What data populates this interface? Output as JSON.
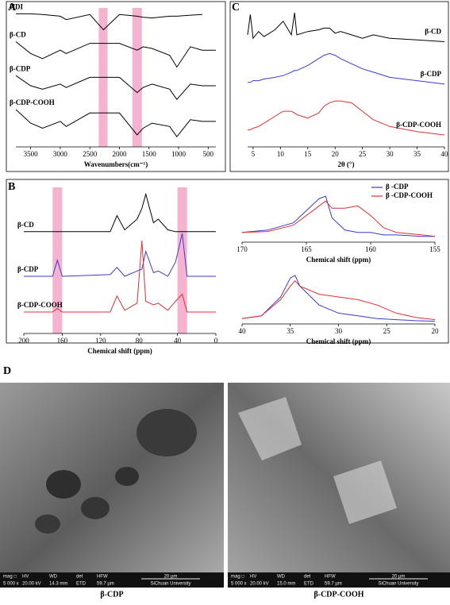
{
  "chart_data": [
    {
      "type": "line",
      "label": "A",
      "xlabel": "Wavenumbers(cm⁻¹)",
      "x": [
        3750,
        3500,
        3300,
        3000,
        2900,
        2500,
        2270,
        2000,
        1700,
        1600,
        1450,
        1150,
        1030,
        800,
        600,
        370
      ],
      "xlim": [
        3750,
        370
      ],
      "xticks": [
        3500,
        3000,
        2500,
        2000,
        1500,
        1000,
        500
      ],
      "ylim": [
        0,
        4
      ],
      "highlights": [
        [
          2350,
          2200
        ],
        [
          1780,
          1620
        ]
      ],
      "series": [
        {
          "name": "HDI",
          "color": "#000000",
          "values": [
            3.92,
            3.92,
            3.9,
            3.85,
            3.75,
            3.9,
            3.45,
            3.9,
            3.85,
            3.82,
            3.8,
            3.85,
            3.85,
            3.88,
            3.9,
            null
          ]
        },
        {
          "name": "β-CD",
          "color": "#000000",
          "values": [
            3.1,
            2.75,
            2.6,
            2.85,
            2.75,
            3.05,
            3.05,
            3.05,
            2.85,
            2.95,
            2.9,
            2.7,
            2.35,
            2.95,
            2.85,
            2.85
          ]
        },
        {
          "name": "β-CDP",
          "color": "#000000",
          "values": [
            2.1,
            1.8,
            1.7,
            1.85,
            1.75,
            2.05,
            2.05,
            2.05,
            1.6,
            1.75,
            1.85,
            1.7,
            1.4,
            1.85,
            1.8,
            1.8
          ]
        },
        {
          "name": "β-CDP-COOH",
          "color": "#000000",
          "values": [
            1.1,
            0.7,
            0.55,
            0.75,
            0.6,
            1.0,
            1.0,
            1.0,
            0.35,
            0.55,
            0.7,
            0.6,
            0.3,
            0.8,
            0.75,
            0.75
          ]
        }
      ]
    },
    {
      "type": "line",
      "label": "C",
      "xlabel": "2θ (°)",
      "x": [
        4,
        4.5,
        5,
        6,
        7,
        9,
        10.5,
        12,
        12.6,
        13,
        15,
        17,
        18,
        19,
        20,
        21,
        23,
        25,
        27,
        30,
        35,
        40
      ],
      "xlim": [
        4,
        40
      ],
      "xticks": [
        5,
        10,
        15,
        20,
        25,
        30,
        35,
        40
      ],
      "ylim": [
        0,
        4
      ],
      "series": [
        {
          "name": "β-CD",
          "color": "#000000",
          "values": [
            3.3,
            3.9,
            3.2,
            3.4,
            3.25,
            3.45,
            3.7,
            3.3,
            3.95,
            3.3,
            3.4,
            3.45,
            3.5,
            3.5,
            3.35,
            3.4,
            3.3,
            3.2,
            3.3,
            3.2,
            3.15,
            3.1
          ]
        },
        {
          "name": "β-CDP",
          "color": "#3a3ad0",
          "values": [
            1.9,
            1.9,
            1.95,
            1.95,
            2.0,
            2.05,
            2.1,
            2.2,
            2.25,
            2.25,
            2.4,
            2.6,
            2.7,
            2.75,
            2.7,
            2.6,
            2.45,
            2.3,
            2.2,
            2.05,
            1.95,
            1.85
          ]
        },
        {
          "name": "β-CDP-COOH",
          "color": "#e03030",
          "values": [
            0.5,
            0.5,
            0.55,
            0.6,
            0.7,
            0.9,
            1.05,
            1.05,
            1.0,
            0.95,
            0.85,
            1.0,
            1.2,
            1.3,
            1.35,
            1.35,
            1.3,
            1.05,
            0.8,
            0.6,
            0.45,
            0.35
          ]
        }
      ]
    },
    {
      "type": "line",
      "label": "B",
      "xlabel": "Chemical shift (ppm)",
      "x": [
        200,
        170,
        165,
        160,
        110,
        103,
        95,
        82,
        77,
        73,
        65,
        60,
        50,
        42,
        35,
        30,
        0
      ],
      "xlim": [
        200,
        0
      ],
      "xticks": [
        200,
        160,
        120,
        80,
        40,
        0
      ],
      "ylim": [
        0,
        4
      ],
      "highlights": [
        [
          170,
          160
        ],
        [
          40,
          30
        ]
      ],
      "series": [
        {
          "name": "β-CD",
          "color": "#000000",
          "values": [
            2.85,
            2.85,
            2.85,
            2.85,
            2.85,
            3.3,
            2.9,
            3.2,
            3.5,
            3.9,
            3.1,
            3.2,
            2.9,
            2.85,
            2.85,
            2.85,
            2.85
          ]
        },
        {
          "name": "β-CDP",
          "color": "#3a3ad0",
          "values": [
            1.6,
            1.6,
            2.05,
            1.6,
            1.65,
            1.85,
            1.6,
            1.75,
            1.8,
            2.3,
            1.7,
            1.75,
            1.6,
            2.0,
            2.8,
            1.6,
            1.6
          ]
        },
        {
          "name": "β-CDP-COOH",
          "color": "#e03030",
          "values": [
            0.6,
            0.6,
            0.7,
            0.6,
            0.6,
            1.05,
            0.65,
            0.85,
            2.6,
            0.9,
            0.8,
            0.85,
            0.65,
            0.9,
            1.1,
            0.6,
            0.6
          ]
        }
      ]
    },
    {
      "type": "line",
      "xlabel": "Chemical shift (ppm)",
      "x": [
        170,
        168,
        166,
        164,
        163.5,
        163,
        162,
        161,
        160,
        159,
        158,
        156,
        155
      ],
      "xlim": [
        170,
        155
      ],
      "xticks": [
        170,
        165,
        160,
        155
      ],
      "ylim": [
        0,
        1
      ],
      "series": [
        {
          "name": "β -CDP",
          "color": "#3a3ad0",
          "values": [
            0.2,
            0.25,
            0.4,
            0.9,
            0.95,
            0.5,
            0.25,
            0.2,
            0.2,
            0.15,
            0.15,
            0.12,
            0.12
          ]
        },
        {
          "name": "β -CDP-COOH",
          "color": "#e03030",
          "values": [
            0.2,
            0.22,
            0.35,
            0.75,
            0.85,
            0.7,
            0.7,
            0.75,
            0.55,
            0.3,
            0.2,
            0.15,
            0.12
          ]
        }
      ]
    },
    {
      "type": "line",
      "xlabel": "Chemical shift (ppm)",
      "x": [
        40,
        38,
        36,
        35,
        34.5,
        34,
        32,
        30,
        28,
        26,
        24,
        22,
        20
      ],
      "xlim": [
        40,
        20
      ],
      "xticks": [
        40,
        35,
        30,
        25,
        20
      ],
      "ylim": [
        0,
        1
      ],
      "series": [
        {
          "color": "#3a3ad0",
          "values": [
            0.1,
            0.15,
            0.5,
            0.85,
            0.9,
            0.7,
            0.35,
            0.2,
            0.15,
            0.1,
            0.08,
            0.06,
            0.05
          ]
        },
        {
          "color": "#e03030",
          "values": [
            0.1,
            0.15,
            0.45,
            0.7,
            0.8,
            0.7,
            0.55,
            0.5,
            0.45,
            0.35,
            0.2,
            0.12,
            0.08
          ]
        }
      ]
    }
  ],
  "figure": {
    "panel_d": {
      "label": "D",
      "images": [
        {
          "caption": "β-CDP",
          "bar_head": [
            "mag □",
            "HV",
            "WD",
            "det",
            "HFW",
            "20 µm"
          ],
          "bar_vals": [
            "5 000 x",
            "20.00 kV",
            "14.3 mm",
            "ETD",
            "59.7 µm",
            "SiChuan University"
          ]
        },
        {
          "caption": "β-CDP-COOH",
          "bar_head": [
            "mag □",
            "HV",
            "WD",
            "det",
            "HFW",
            "20 µm"
          ],
          "bar_vals": [
            "5 000 x",
            "20.00 kV",
            "15.0 mm",
            "ETD",
            "59.7 µm",
            "SiChuan University"
          ]
        }
      ]
    }
  }
}
